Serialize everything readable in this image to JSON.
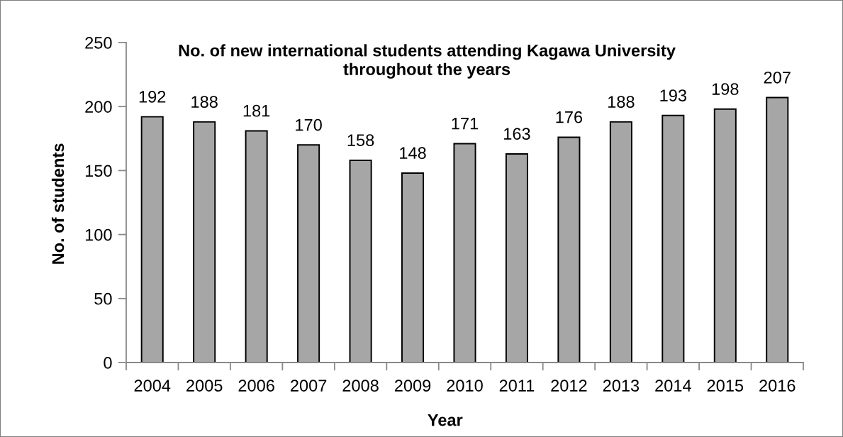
{
  "chart_data": {
    "type": "bar",
    "title": "No. of new international students attending Kagawa University\nthroughout the years",
    "xlabel": "Year",
    "ylabel": "No. of students",
    "categories": [
      "2004",
      "2005",
      "2006",
      "2007",
      "2008",
      "2009",
      "2010",
      "2011",
      "2012",
      "2013",
      "2014",
      "2015",
      "2016"
    ],
    "values": [
      192,
      188,
      181,
      170,
      158,
      148,
      171,
      163,
      176,
      188,
      193,
      198,
      207
    ],
    "color": "#a6a6a6",
    "ylim": [
      0,
      250
    ],
    "yticks": [
      0,
      50,
      100,
      150,
      200,
      250
    ],
    "data_labels": true,
    "grid": false,
    "legend": false
  }
}
